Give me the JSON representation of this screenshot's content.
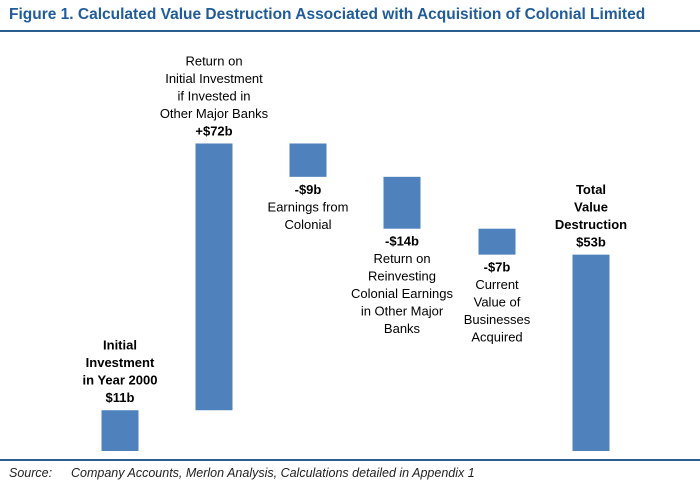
{
  "title": "Figure 1.  Calculated Value Destruction Associated with Acquisition of Colonial Limited",
  "source": {
    "label": "Source:",
    "text": "Company Accounts, Merlon Analysis, Calculations detailed in Appendix 1"
  },
  "colors": {
    "bar": "#4f81bd",
    "title": "#1f5c99",
    "rule": "#2c5f8f"
  },
  "chart_data": {
    "type": "bar",
    "subtype": "waterfall",
    "categories": [
      "Initial Investment in Year 2000",
      "Return on Initial Investment if Invested in Other Major Banks",
      "Earnings from Colonial",
      "Return on Reinvesting Colonial Earnings in Other Major Banks",
      "Current Value of Businesses Acquired",
      "Total Value Destruction"
    ],
    "values": [
      11,
      72,
      -9,
      -14,
      -7,
      53
    ],
    "value_labels": [
      "$11b",
      "+$72b",
      "-$9b",
      "-$14b",
      "-$7b",
      "$53b"
    ],
    "xlabel": "",
    "ylabel": "",
    "grid": false,
    "legend": "none",
    "bars": [
      {
        "kind": "absolute",
        "value": 11,
        "value_label": "$11b",
        "label_lines": [
          "Initial",
          "Investment",
          "in Year 2000"
        ],
        "label_bold": true,
        "label_position": "above",
        "value_position": "below-label"
      },
      {
        "kind": "delta",
        "value": 72,
        "value_label": "+$72b",
        "label_lines": [
          "Return on",
          "Initial Investment",
          "if Invested in",
          "Other Major Banks"
        ],
        "label_bold": false,
        "label_position": "above",
        "value_position": "below-label"
      },
      {
        "kind": "delta",
        "value": -9,
        "value_label": "-$9b",
        "label_lines": [
          "Earnings from",
          "Colonial"
        ],
        "label_bold": false,
        "label_position": "below",
        "value_position": "above-label"
      },
      {
        "kind": "delta",
        "value": -14,
        "value_label": "-$14b",
        "label_lines": [
          "Return on",
          "Reinvesting",
          "Colonial Earnings",
          "in Other Major",
          "Banks"
        ],
        "label_bold": false,
        "label_position": "below",
        "value_position": "above-label"
      },
      {
        "kind": "delta",
        "value": -7,
        "value_label": "-$7b",
        "label_lines": [
          "Current",
          "Value of",
          "Businesses",
          "Acquired"
        ],
        "label_bold": false,
        "label_position": "below",
        "value_position": "above-label"
      },
      {
        "kind": "total",
        "value": 53,
        "value_label": "$53b",
        "label_lines": [
          "Total",
          "Value",
          "Destruction"
        ],
        "label_bold": true,
        "label_position": "above",
        "value_position": "below-label"
      }
    ]
  }
}
